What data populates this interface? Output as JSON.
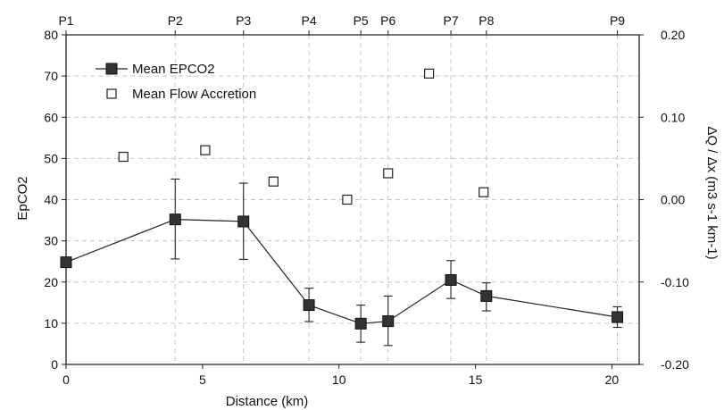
{
  "chart_data": {
    "type": "scatter",
    "xlabel": "Distance (km)",
    "ylabel": "EpCO2",
    "y2label": "ΔQ / Δx (m3 s-1 km-1)",
    "xlim": [
      0,
      21
    ],
    "ylim": [
      0,
      80
    ],
    "y2lim": [
      -0.2,
      0.2
    ],
    "xticks": [
      "0",
      "5",
      "10",
      "15",
      "20"
    ],
    "yticks": [
      "0",
      "10",
      "20",
      "30",
      "40",
      "50",
      "60",
      "70",
      "80"
    ],
    "y2ticks": [
      "-0.20",
      "-0.10",
      "0.00",
      "0.10",
      "0.20"
    ],
    "grid": "dashed vertical lines at site positions; dashed horizontal lines",
    "legend_position": "top-left",
    "site_labels": [
      {
        "label": "P1",
        "x": 0
      },
      {
        "label": "P2",
        "x": 4
      },
      {
        "label": "P3",
        "x": 6.5
      },
      {
        "label": "P4",
        "x": 8.9
      },
      {
        "label": "P5",
        "x": 10.8
      },
      {
        "label": "P6",
        "x": 11.8
      },
      {
        "label": "P7",
        "x": 14.1
      },
      {
        "label": "P8",
        "x": 15.4
      },
      {
        "label": "P9",
        "x": 20.2
      }
    ],
    "series": [
      {
        "name": "Mean EPCO2",
        "axis": "left",
        "marker": "filled-square-line",
        "x": [
          0,
          4,
          6.5,
          8.9,
          10.8,
          11.8,
          14.1,
          15.4,
          20.2
        ],
        "y": [
          24.8,
          35.2,
          34.7,
          14.4,
          9.9,
          10.5,
          20.5,
          16.6,
          11.5
        ],
        "error_low": [
          24.8,
          25.6,
          25.5,
          10.4,
          5.4,
          4.6,
          16.0,
          13.0,
          9.0
        ],
        "error_high": [
          24.8,
          45.0,
          44.0,
          18.5,
          14.4,
          16.6,
          25.2,
          19.8,
          14.0
        ]
      },
      {
        "name": "Mean Flow Accretion",
        "axis": "right",
        "marker": "open-square",
        "x": [
          2.1,
          5.1,
          7.6,
          10.3,
          11.8,
          13.3,
          15.3
        ],
        "y": [
          0.052,
          0.06,
          0.022,
          0.0,
          0.032,
          0.153,
          0.009
        ]
      }
    ],
    "colors": {
      "axis_label": "#8b1a1a",
      "line": "#222222",
      "grid": "#c8c8c8"
    }
  }
}
